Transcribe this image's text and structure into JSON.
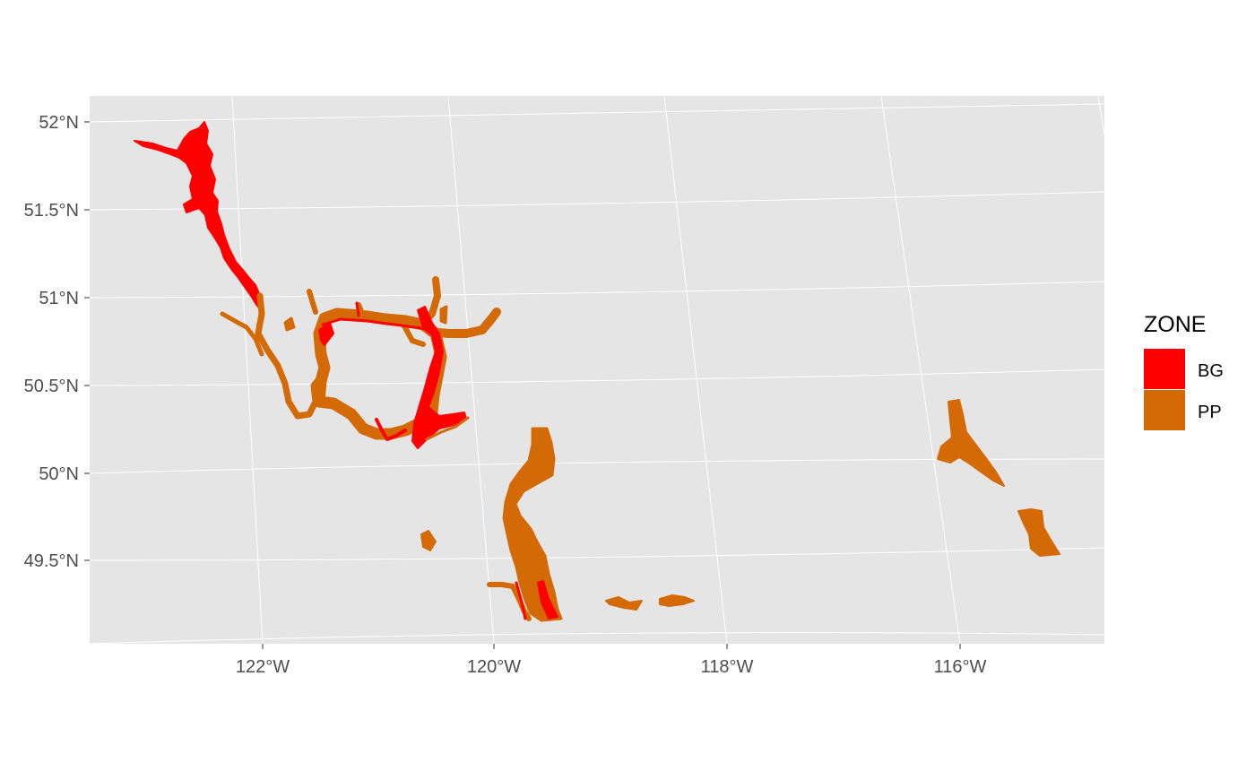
{
  "map": {
    "y_axis_labels": [
      "52°N",
      "51.5°N",
      "51°N",
      "50.5°N",
      "50°N",
      "49.5°N"
    ],
    "x_axis_labels": [
      "122°W",
      "120°W",
      "118°W",
      "116°W"
    ],
    "legend": {
      "title": "ZONE",
      "items": [
        {
          "label": "BG",
          "color": "#ff0000"
        },
        {
          "label": "PP",
          "color": "#d46a06"
        }
      ]
    },
    "colors": {
      "panel_background": "#e5e5e5",
      "gridline": "#ffffff",
      "zone_BG": "#ff0000",
      "zone_PP": "#d46a06",
      "axis_text": "#4d4d4d"
    },
    "projection": "conic (curved graticule)"
  }
}
